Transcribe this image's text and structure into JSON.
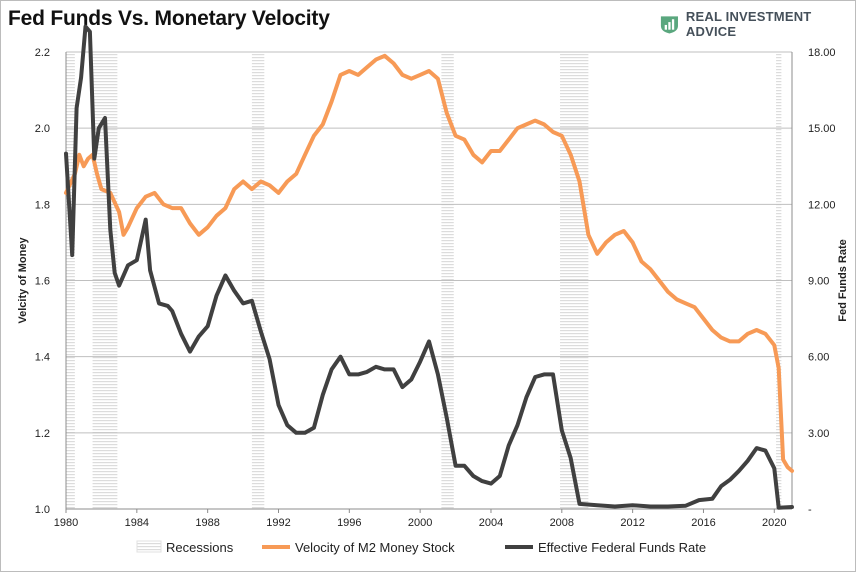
{
  "title": "Fed Funds Vs. Monetary Velocity",
  "brand": {
    "name": "REAL INVESTMENT ADVICE",
    "logo_icon": "rising-bars-shield-icon",
    "logo_color": "#5aa77e"
  },
  "colors": {
    "velocity": "#f79a56",
    "fedfunds": "#404040",
    "recession_fill": "#e6e6e6",
    "gridline": "#bfbfbf"
  },
  "chart_data": {
    "type": "line",
    "title": "Fed Funds Vs. Monetary Velocity",
    "xlabel": "",
    "xlim": [
      1980,
      2021
    ],
    "x_ticks": [
      "1980",
      "1984",
      "1988",
      "1992",
      "1996",
      "2000",
      "2004",
      "2008",
      "2012",
      "2016",
      "2020"
    ],
    "y_left": {
      "label": "Velcity of Money",
      "lim": [
        1.0,
        2.2
      ],
      "ticks": [
        "1.0",
        "1.2",
        "1.4",
        "1.6",
        "1.8",
        "2.0",
        "2.2"
      ]
    },
    "y_right": {
      "label": "Fed Funds Rate",
      "lim": [
        0,
        18
      ],
      "ticks": [
        "-",
        "3.00",
        "6.00",
        "9.00",
        "12.00",
        "15.00",
        "18.00"
      ]
    },
    "grid": true,
    "legend": {
      "placement": "bottom",
      "entries": [
        "Recessions",
        "Velocity of M2 Money Stock",
        "Effective Federal Funds Rate"
      ]
    },
    "recessions": [
      [
        1980.0,
        1980.5
      ],
      [
        1981.5,
        1982.9
      ],
      [
        1990.5,
        1991.2
      ],
      [
        2001.2,
        2001.9
      ],
      [
        2007.9,
        2009.5
      ],
      [
        2020.1,
        2020.4
      ]
    ],
    "series": [
      {
        "name": "Velocity of M2 Money Stock",
        "axis": "left",
        "points": [
          [
            1980.0,
            1.83
          ],
          [
            1980.5,
            1.88
          ],
          [
            1980.75,
            1.93
          ],
          [
            1981.0,
            1.9
          ],
          [
            1981.25,
            1.92
          ],
          [
            1981.5,
            1.93
          ],
          [
            1981.75,
            1.88
          ],
          [
            1982.0,
            1.84
          ],
          [
            1982.5,
            1.83
          ],
          [
            1983.0,
            1.78
          ],
          [
            1983.25,
            1.72
          ],
          [
            1983.5,
            1.74
          ],
          [
            1984.0,
            1.79
          ],
          [
            1984.5,
            1.82
          ],
          [
            1985.0,
            1.83
          ],
          [
            1985.5,
            1.8
          ],
          [
            1986.0,
            1.79
          ],
          [
            1986.5,
            1.79
          ],
          [
            1987.0,
            1.75
          ],
          [
            1987.5,
            1.72
          ],
          [
            1988.0,
            1.74
          ],
          [
            1988.5,
            1.77
          ],
          [
            1989.0,
            1.79
          ],
          [
            1989.5,
            1.84
          ],
          [
            1990.0,
            1.86
          ],
          [
            1990.5,
            1.84
          ],
          [
            1991.0,
            1.86
          ],
          [
            1991.5,
            1.85
          ],
          [
            1992.0,
            1.83
          ],
          [
            1992.5,
            1.86
          ],
          [
            1993.0,
            1.88
          ],
          [
            1993.5,
            1.93
          ],
          [
            1994.0,
            1.98
          ],
          [
            1994.5,
            2.01
          ],
          [
            1995.0,
            2.07
          ],
          [
            1995.5,
            2.14
          ],
          [
            1996.0,
            2.15
          ],
          [
            1996.5,
            2.14
          ],
          [
            1997.0,
            2.16
          ],
          [
            1997.5,
            2.18
          ],
          [
            1998.0,
            2.19
          ],
          [
            1998.5,
            2.17
          ],
          [
            1999.0,
            2.14
          ],
          [
            1999.5,
            2.13
          ],
          [
            2000.0,
            2.14
          ],
          [
            2000.5,
            2.15
          ],
          [
            2001.0,
            2.13
          ],
          [
            2001.5,
            2.04
          ],
          [
            2002.0,
            1.98
          ],
          [
            2002.5,
            1.97
          ],
          [
            2003.0,
            1.93
          ],
          [
            2003.5,
            1.91
          ],
          [
            2004.0,
            1.94
          ],
          [
            2004.5,
            1.94
          ],
          [
            2005.0,
            1.97
          ],
          [
            2005.5,
            2.0
          ],
          [
            2006.0,
            2.01
          ],
          [
            2006.5,
            2.02
          ],
          [
            2007.0,
            2.01
          ],
          [
            2007.5,
            1.99
          ],
          [
            2008.0,
            1.98
          ],
          [
            2008.5,
            1.93
          ],
          [
            2009.0,
            1.86
          ],
          [
            2009.5,
            1.72
          ],
          [
            2010.0,
            1.67
          ],
          [
            2010.5,
            1.7
          ],
          [
            2011.0,
            1.72
          ],
          [
            2011.5,
            1.73
          ],
          [
            2012.0,
            1.7
          ],
          [
            2012.5,
            1.65
          ],
          [
            2013.0,
            1.63
          ],
          [
            2013.5,
            1.6
          ],
          [
            2014.0,
            1.57
          ],
          [
            2014.5,
            1.55
          ],
          [
            2015.0,
            1.54
          ],
          [
            2015.5,
            1.53
          ],
          [
            2016.0,
            1.5
          ],
          [
            2016.5,
            1.47
          ],
          [
            2017.0,
            1.45
          ],
          [
            2017.5,
            1.44
          ],
          [
            2018.0,
            1.44
          ],
          [
            2018.5,
            1.46
          ],
          [
            2019.0,
            1.47
          ],
          [
            2019.5,
            1.46
          ],
          [
            2020.0,
            1.43
          ],
          [
            2020.25,
            1.37
          ],
          [
            2020.5,
            1.13
          ],
          [
            2020.75,
            1.11
          ],
          [
            2021.0,
            1.1
          ]
        ]
      },
      {
        "name": "Effective Federal Funds Rate",
        "axis": "right",
        "points": [
          [
            1980.0,
            14.0
          ],
          [
            1980.35,
            10.0
          ],
          [
            1980.6,
            15.8
          ],
          [
            1980.85,
            17.0
          ],
          [
            1981.1,
            19.0
          ],
          [
            1981.35,
            18.8
          ],
          [
            1981.6,
            13.8
          ],
          [
            1981.85,
            15.0
          ],
          [
            1982.2,
            15.4
          ],
          [
            1982.5,
            11.0
          ],
          [
            1982.75,
            9.3
          ],
          [
            1983.0,
            8.8
          ],
          [
            1983.5,
            9.6
          ],
          [
            1984.0,
            9.8
          ],
          [
            1984.5,
            11.4
          ],
          [
            1984.75,
            9.4
          ],
          [
            1985.25,
            8.1
          ],
          [
            1985.75,
            8.0
          ],
          [
            1986.0,
            7.8
          ],
          [
            1986.5,
            6.9
          ],
          [
            1987.0,
            6.2
          ],
          [
            1987.5,
            6.8
          ],
          [
            1988.0,
            7.2
          ],
          [
            1988.5,
            8.4
          ],
          [
            1989.0,
            9.2
          ],
          [
            1989.5,
            8.6
          ],
          [
            1990.0,
            8.1
          ],
          [
            1990.5,
            8.2
          ],
          [
            1991.0,
            7.0
          ],
          [
            1991.5,
            5.9
          ],
          [
            1992.0,
            4.1
          ],
          [
            1992.5,
            3.3
          ],
          [
            1993.0,
            3.0
          ],
          [
            1993.5,
            3.0
          ],
          [
            1994.0,
            3.2
          ],
          [
            1994.5,
            4.5
          ],
          [
            1995.0,
            5.5
          ],
          [
            1995.5,
            6.0
          ],
          [
            1996.0,
            5.3
          ],
          [
            1996.5,
            5.3
          ],
          [
            1997.0,
            5.4
          ],
          [
            1997.5,
            5.6
          ],
          [
            1998.0,
            5.5
          ],
          [
            1998.5,
            5.5
          ],
          [
            1999.0,
            4.8
          ],
          [
            1999.5,
            5.1
          ],
          [
            2000.0,
            5.8
          ],
          [
            2000.5,
            6.6
          ],
          [
            2001.0,
            5.3
          ],
          [
            2001.5,
            3.6
          ],
          [
            2002.0,
            1.7
          ],
          [
            2002.5,
            1.7
          ],
          [
            2003.0,
            1.3
          ],
          [
            2003.5,
            1.1
          ],
          [
            2004.0,
            1.0
          ],
          [
            2004.5,
            1.3
          ],
          [
            2005.0,
            2.5
          ],
          [
            2005.5,
            3.3
          ],
          [
            2006.0,
            4.4
          ],
          [
            2006.5,
            5.2
          ],
          [
            2007.0,
            5.3
          ],
          [
            2007.5,
            5.3
          ],
          [
            2008.0,
            3.1
          ],
          [
            2008.5,
            2.0
          ],
          [
            2009.0,
            0.2
          ],
          [
            2010.0,
            0.15
          ],
          [
            2011.0,
            0.1
          ],
          [
            2012.0,
            0.15
          ],
          [
            2013.0,
            0.1
          ],
          [
            2014.0,
            0.1
          ],
          [
            2015.0,
            0.13
          ],
          [
            2015.75,
            0.35
          ],
          [
            2016.5,
            0.4
          ],
          [
            2017.0,
            0.9
          ],
          [
            2017.5,
            1.15
          ],
          [
            2018.0,
            1.5
          ],
          [
            2018.5,
            1.9
          ],
          [
            2019.0,
            2.4
          ],
          [
            2019.5,
            2.3
          ],
          [
            2020.0,
            1.6
          ],
          [
            2020.25,
            0.05
          ],
          [
            2021.0,
            0.08
          ]
        ]
      }
    ]
  }
}
